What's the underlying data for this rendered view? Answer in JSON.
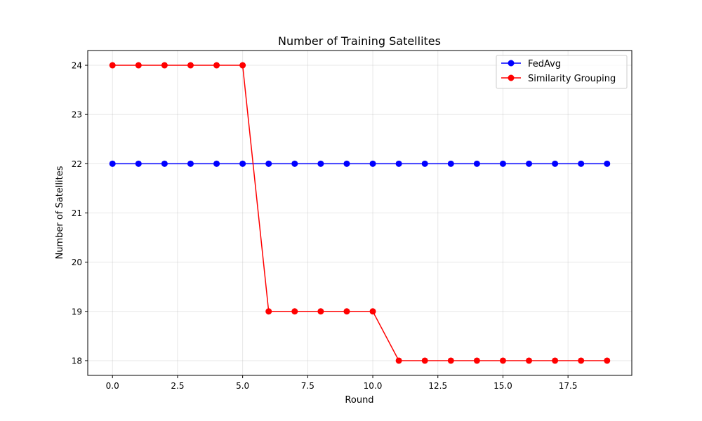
{
  "chart_data": {
    "type": "line",
    "title": "Number of Training Satellites",
    "xlabel": "Round",
    "ylabel": "Number of Satellites",
    "x": [
      0,
      1,
      2,
      3,
      4,
      5,
      6,
      7,
      8,
      9,
      10,
      11,
      12,
      13,
      14,
      15,
      16,
      17,
      18,
      19
    ],
    "xlim": [
      -0.95,
      19.95
    ],
    "ylim": [
      17.7,
      24.3
    ],
    "xticks": [
      0.0,
      2.5,
      5.0,
      7.5,
      10.0,
      12.5,
      15.0,
      17.5
    ],
    "xtick_labels": [
      "0.0",
      "2.5",
      "5.0",
      "7.5",
      "10.0",
      "12.5",
      "15.0",
      "17.5"
    ],
    "yticks": [
      18,
      19,
      20,
      21,
      22,
      23,
      24
    ],
    "ytick_labels": [
      "18",
      "19",
      "20",
      "21",
      "22",
      "23",
      "24"
    ],
    "grid": true,
    "legend_position": "top-right",
    "series": [
      {
        "name": "FedAvg",
        "color": "#0000ff",
        "marker": "circle",
        "values": [
          22,
          22,
          22,
          22,
          22,
          22,
          22,
          22,
          22,
          22,
          22,
          22,
          22,
          22,
          22,
          22,
          22,
          22,
          22,
          22
        ]
      },
      {
        "name": "Similarity Grouping",
        "color": "#ff0000",
        "marker": "circle",
        "values": [
          24,
          24,
          24,
          24,
          24,
          24,
          19,
          19,
          19,
          19,
          19,
          18,
          18,
          18,
          18,
          18,
          18,
          18,
          18,
          18
        ]
      }
    ]
  }
}
